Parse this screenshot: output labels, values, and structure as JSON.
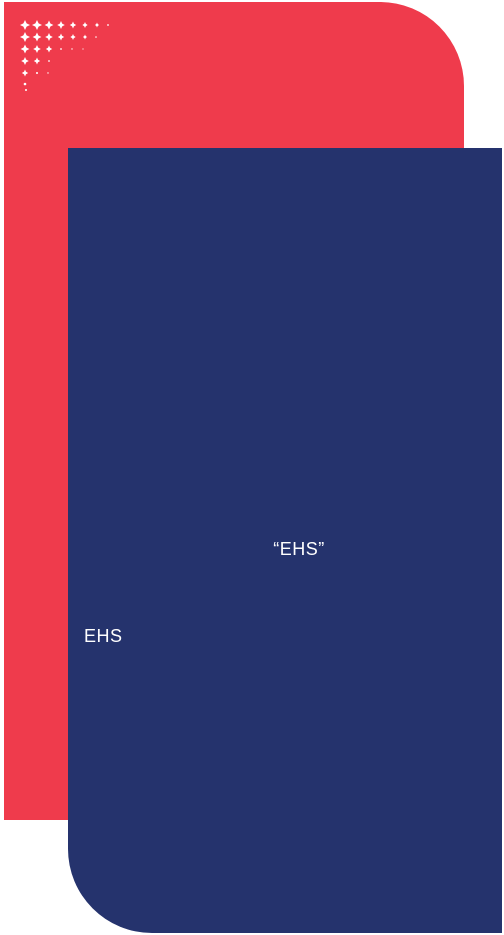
{
  "colors": {
    "red_panel": "#ef3b4c",
    "blue_panel": "#25336d",
    "dots": "#ffffff"
  },
  "decorations": {
    "dots_pattern_icon": "dots-grid-icon"
  },
  "content": {
    "quote_label": "“EHS”",
    "side_label": "EHS"
  }
}
